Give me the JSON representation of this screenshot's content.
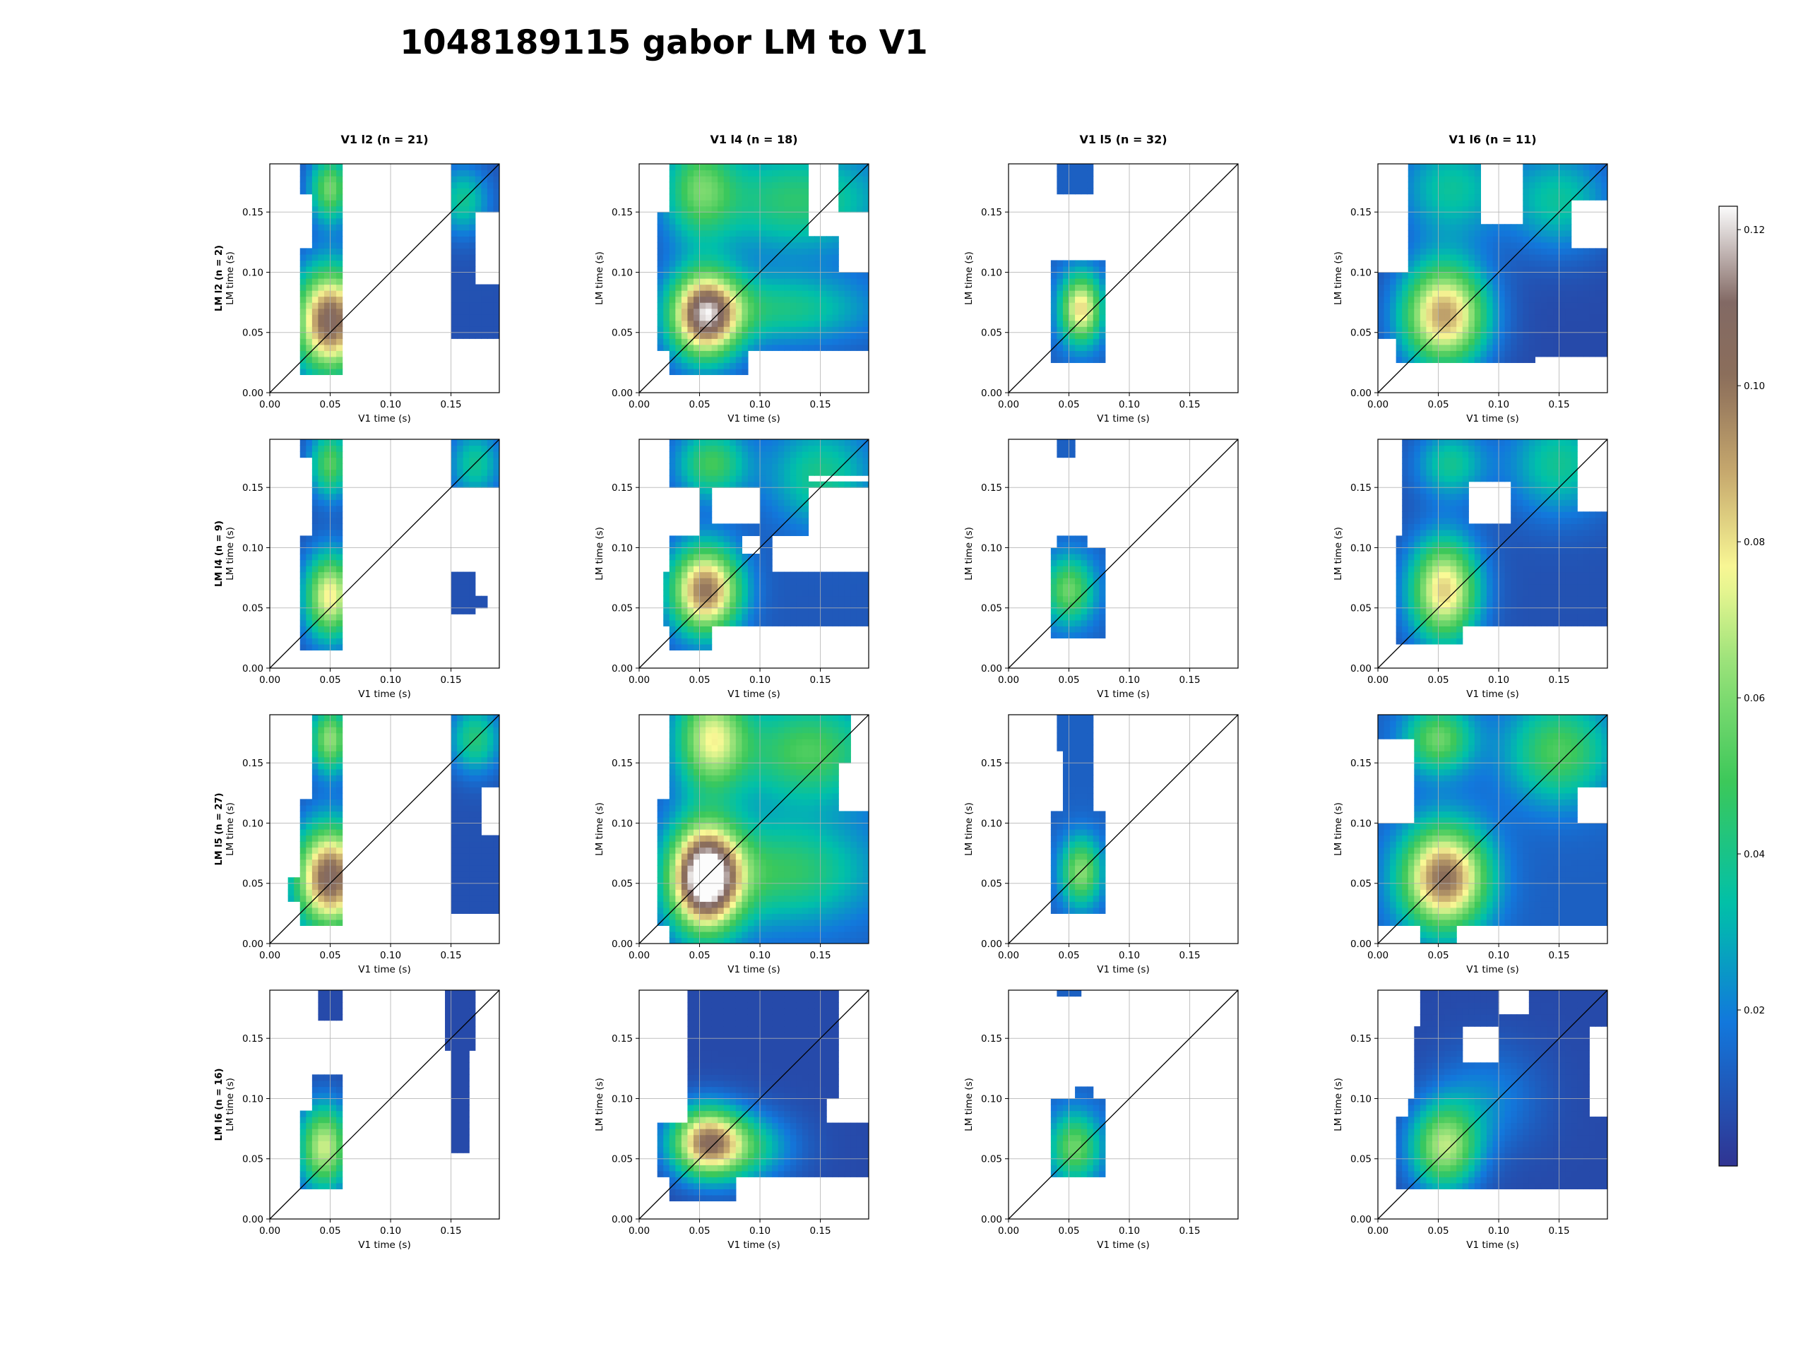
{
  "title": "1048189115 gabor LM to V1",
  "colorbar": {
    "colormap": "terrain_r",
    "vmin": 0.0,
    "vmax": 0.123,
    "ticks": [
      0.02,
      0.04,
      0.06,
      0.08,
      0.1,
      0.12
    ],
    "tick_labels": [
      "0.02",
      "0.04",
      "0.06",
      "0.08",
      "0.10",
      "0.12"
    ]
  },
  "chart_data": {
    "type": "heatmap",
    "xlabel": "V1 time (s)",
    "ylabel": "LM time (s)",
    "xlim": [
      0,
      0.19
    ],
    "ylim": [
      0,
      0.19
    ],
    "xticks": [
      0.0,
      0.05,
      0.1,
      0.15
    ],
    "yticks": [
      0.0,
      0.05,
      0.1,
      0.15
    ],
    "xtick_labels": [
      "0.00",
      "0.05",
      "0.10",
      "0.15"
    ],
    "ytick_labels": [
      "0.00",
      "0.05",
      "0.10",
      "0.15"
    ],
    "grid": true,
    "diagonal_line": true,
    "col_titles": [
      "V1 l2 (n = 21)",
      "V1 l4 (n = 18)",
      "V1 l5 (n = 32)",
      "V1 l6 (n = 11)"
    ],
    "row_titles": [
      "LM l2 (n = 2)",
      "LM l4 (n = 9)",
      "LM l5 (n = 27)",
      "LM l6 (n = 16)"
    ],
    "panels": [
      [
        {
          "blobs": [
            [
              0.05,
              0.06,
              0.02,
              0.03,
              0.1
            ],
            [
              0.05,
              0.17,
              0.012,
              0.02,
              0.05
            ],
            [
              0.16,
              0.16,
              0.015,
              0.02,
              0.03
            ]
          ],
          "base": 0.008,
          "regions": [
            [
              0.025,
              0.062,
              0.015,
              0.12
            ],
            [
              0.035,
              0.062,
              0.12,
              0.19
            ],
            [
              0.025,
              0.062,
              0.165,
              0.19
            ],
            [
              0.148,
              0.19,
              0.045,
              0.09
            ],
            [
              0.148,
              0.17,
              0.09,
              0.19
            ],
            [
              0.17,
              0.19,
              0.15,
              0.19
            ]
          ]
        },
        {
          "blobs": [
            [
              0.055,
              0.065,
              0.02,
              0.025,
              0.1
            ],
            [
              0.05,
              0.17,
              0.02,
              0.03,
              0.04
            ],
            [
              0.13,
              0.16,
              0.05,
              0.03,
              0.035
            ],
            [
              0.12,
              0.07,
              0.05,
              0.02,
              0.03
            ]
          ],
          "base": 0.01,
          "regions": [
            [
              0.015,
              0.19,
              0.035,
              0.15
            ],
            [
              0.025,
              0.19,
              0.15,
              0.19
            ],
            [
              0.025,
              0.09,
              0.015,
              0.035
            ],
            [
              0.015,
              0.05,
              0.05,
              0.15
            ]
          ],
          "holes": [
            [
              0.165,
              0.19,
              0.1,
              0.15
            ],
            [
              0.14,
              0.165,
              0.13,
              0.19
            ]
          ]
        },
        {
          "blobs": [
            [
              0.06,
              0.07,
              0.012,
              0.02,
              0.07
            ]
          ],
          "base": 0.012,
          "regions": [
            [
              0.035,
              0.078,
              0.025,
              0.11
            ],
            [
              0.04,
              0.07,
              0.165,
              0.19
            ]
          ]
        },
        {
          "blobs": [
            [
              0.055,
              0.065,
              0.025,
              0.03,
              0.085
            ],
            [
              0.15,
              0.16,
              0.03,
              0.03,
              0.03
            ],
            [
              0.06,
              0.17,
              0.03,
              0.03,
              0.03
            ]
          ],
          "base": 0.006,
          "regions": [
            [
              0.0,
              0.19,
              0.045,
              0.1
            ],
            [
              0.015,
              0.19,
              0.025,
              0.045
            ],
            [
              0.025,
              0.19,
              0.1,
              0.19
            ]
          ],
          "holes": [
            [
              0.085,
              0.12,
              0.14,
              0.19
            ],
            [
              0.16,
              0.19,
              0.12,
              0.16
            ],
            [
              0.13,
              0.19,
              0.0,
              0.03
            ]
          ]
        }
      ],
      [
        {
          "blobs": [
            [
              0.05,
              0.06,
              0.015,
              0.025,
              0.07
            ],
            [
              0.05,
              0.17,
              0.012,
              0.02,
              0.045
            ],
            [
              0.17,
              0.17,
              0.015,
              0.02,
              0.03
            ]
          ],
          "base": 0.008,
          "regions": [
            [
              0.025,
              0.062,
              0.015,
              0.11
            ],
            [
              0.035,
              0.062,
              0.11,
              0.19
            ],
            [
              0.025,
              0.062,
              0.175,
              0.19
            ],
            [
              0.148,
              0.172,
              0.045,
              0.08
            ],
            [
              0.17,
              0.18,
              0.05,
              0.06
            ],
            [
              0.148,
              0.19,
              0.15,
              0.19
            ]
          ]
        },
        {
          "blobs": [
            [
              0.055,
              0.065,
              0.02,
              0.025,
              0.09
            ],
            [
              0.06,
              0.17,
              0.02,
              0.02,
              0.04
            ],
            [
              0.15,
              0.16,
              0.03,
              0.03,
              0.03
            ]
          ],
          "base": 0.01,
          "regions": [
            [
              0.02,
              0.19,
              0.035,
              0.08
            ],
            [
              0.025,
              0.06,
              0.015,
              0.035
            ],
            [
              0.025,
              0.08,
              0.08,
              0.11
            ],
            [
              0.025,
              0.19,
              0.15,
              0.19
            ],
            [
              0.05,
              0.14,
              0.11,
              0.15
            ],
            [
              0.06,
              0.11,
              0.08,
              0.11
            ]
          ],
          "holes": [
            [
              0.06,
              0.1,
              0.12,
              0.15
            ],
            [
              0.14,
              0.19,
              0.155,
              0.16
            ],
            [
              0.085,
              0.1,
              0.095,
              0.11
            ]
          ]
        },
        {
          "blobs": [
            [
              0.05,
              0.065,
              0.015,
              0.02,
              0.045
            ]
          ],
          "base": 0.012,
          "regions": [
            [
              0.035,
              0.078,
              0.025,
              0.1
            ],
            [
              0.04,
              0.065,
              0.1,
              0.11
            ],
            [
              0.042,
              0.055,
              0.175,
              0.19
            ]
          ]
        },
        {
          "blobs": [
            [
              0.055,
              0.065,
              0.02,
              0.03,
              0.075
            ],
            [
              0.15,
              0.17,
              0.03,
              0.03,
              0.03
            ],
            [
              0.06,
              0.17,
              0.02,
              0.02,
              0.03
            ]
          ],
          "base": 0.008,
          "regions": [
            [
              0.015,
              0.19,
              0.035,
              0.11
            ],
            [
              0.015,
              0.07,
              0.02,
              0.035
            ],
            [
              0.02,
              0.19,
              0.11,
              0.19
            ]
          ],
          "holes": [
            [
              0.075,
              0.11,
              0.12,
              0.155
            ],
            [
              0.165,
              0.19,
              0.13,
              0.19
            ],
            [
              0.11,
              0.17,
              0.0,
              0.035
            ]
          ]
        }
      ],
      [
        {
          "blobs": [
            [
              0.05,
              0.055,
              0.02,
              0.03,
              0.1
            ],
            [
              0.05,
              0.17,
              0.012,
              0.02,
              0.055
            ],
            [
              0.17,
              0.17,
              0.015,
              0.02,
              0.035
            ]
          ],
          "base": 0.008,
          "regions": [
            [
              0.025,
              0.062,
              0.015,
              0.12
            ],
            [
              0.035,
              0.062,
              0.12,
              0.19
            ],
            [
              0.015,
              0.03,
              0.035,
              0.055
            ],
            [
              0.148,
              0.19,
              0.025,
              0.19
            ]
          ],
          "holes": [
            [
              0.175,
              0.19,
              0.09,
              0.13
            ]
          ]
        },
        {
          "blobs": [
            [
              0.055,
              0.055,
              0.02,
              0.03,
              0.12
            ],
            [
              0.06,
              0.17,
              0.02,
              0.03,
              0.06
            ],
            [
              0.14,
              0.16,
              0.04,
              0.03,
              0.04
            ],
            [
              0.12,
              0.06,
              0.05,
              0.03,
              0.035
            ]
          ],
          "base": 0.012,
          "regions": [
            [
              0.015,
              0.19,
              0.015,
              0.19
            ],
            [
              0.025,
              0.19,
              0.0,
              0.015
            ]
          ],
          "holes": [
            [
              0.0,
              0.025,
              0.12,
              0.19
            ],
            [
              0.165,
              0.19,
              0.11,
              0.15
            ],
            [
              0.175,
              0.19,
              0.15,
              0.19
            ]
          ]
        },
        {
          "blobs": [
            [
              0.06,
              0.06,
              0.012,
              0.02,
              0.05
            ]
          ],
          "base": 0.012,
          "regions": [
            [
              0.035,
              0.078,
              0.025,
              0.11
            ],
            [
              0.045,
              0.072,
              0.11,
              0.16
            ],
            [
              0.04,
              0.072,
              0.16,
              0.19
            ]
          ]
        },
        {
          "blobs": [
            [
              0.055,
              0.055,
              0.025,
              0.03,
              0.09
            ],
            [
              0.05,
              0.17,
              0.02,
              0.02,
              0.045
            ],
            [
              0.15,
              0.16,
              0.03,
              0.03,
              0.04
            ]
          ],
          "base": 0.012,
          "regions": [
            [
              0.0,
              0.19,
              0.015,
              0.19
            ],
            [
              0.035,
              0.065,
              0.0,
              0.015
            ]
          ],
          "holes": [
            [
              0.0,
              0.03,
              0.1,
              0.17
            ],
            [
              0.165,
              0.19,
              0.1,
              0.13
            ],
            [
              0.14,
              0.19,
              0.0,
              0.015
            ]
          ]
        }
      ],
      [
        {
          "blobs": [
            [
              0.045,
              0.06,
              0.015,
              0.025,
              0.065
            ]
          ],
          "base": 0.006,
          "regions": [
            [
              0.025,
              0.062,
              0.025,
              0.09
            ],
            [
              0.035,
              0.062,
              0.09,
              0.12
            ],
            [
              0.042,
              0.062,
              0.165,
              0.19
            ],
            [
              0.148,
              0.165,
              0.055,
              0.19
            ],
            [
              0.145,
              0.17,
              0.14,
              0.19
            ]
          ]
        },
        {
          "blobs": [
            [
              0.055,
              0.065,
              0.02,
              0.02,
              0.07
            ],
            [
              0.08,
              0.06,
              0.03,
              0.02,
              0.04
            ]
          ],
          "base": 0.006,
          "regions": [
            [
              0.015,
              0.19,
              0.035,
              0.08
            ],
            [
              0.025,
              0.08,
              0.015,
              0.035
            ],
            [
              0.04,
              0.17,
              0.08,
              0.19
            ]
          ],
          "holes": [
            [
              0.165,
              0.19,
              0.1,
              0.19
            ],
            [
              0.155,
              0.19,
              0.08,
              0.1
            ]
          ]
        },
        {
          "blobs": [
            [
              0.055,
              0.06,
              0.015,
              0.02,
              0.045
            ]
          ],
          "base": 0.012,
          "regions": [
            [
              0.035,
              0.078,
              0.035,
              0.1
            ],
            [
              0.055,
              0.07,
              0.1,
              0.11
            ],
            [
              0.042,
              0.062,
              0.185,
              0.19
            ]
          ]
        },
        {
          "blobs": [
            [
              0.055,
              0.06,
              0.02,
              0.025,
              0.06
            ],
            [
              0.09,
              0.1,
              0.03,
              0.03,
              0.015
            ]
          ],
          "base": 0.006,
          "regions": [
            [
              0.015,
              0.19,
              0.025,
              0.085
            ],
            [
              0.025,
              0.175,
              0.085,
              0.16
            ],
            [
              0.035,
              0.19,
              0.16,
              0.19
            ]
          ],
          "holes": [
            [
              0.0,
              0.03,
              0.1,
              0.19
            ],
            [
              0.07,
              0.1,
              0.13,
              0.16
            ],
            [
              0.1,
              0.125,
              0.17,
              0.19
            ]
          ]
        }
      ]
    ]
  }
}
